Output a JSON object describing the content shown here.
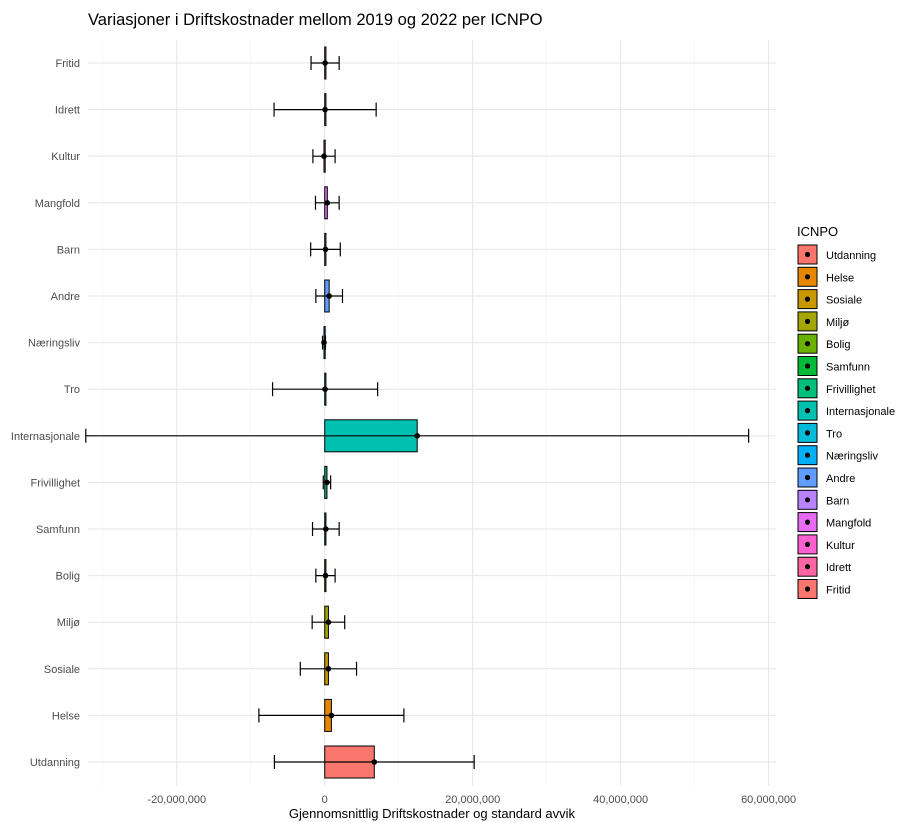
{
  "chart_data": {
    "type": "bar",
    "orientation": "horizontal",
    "title": "Variasjoner i Driftskostnader mellom 2019 og 2022 per ICNPO",
    "xlabel": "Gjennomsnittlig Driftskostnader og standard avvik",
    "ylabel": "",
    "xlim": [
      -32000000,
      61000000
    ],
    "x_ticks": [
      -20000000,
      0,
      20000000,
      40000000,
      60000000
    ],
    "x_tick_labels": [
      "-20,000,000",
      "0",
      "20,000,000",
      "40,000,000",
      "60,000,000"
    ],
    "grid": true,
    "legend": {
      "title": "ICNPO",
      "placement": "right",
      "entries": [
        "Utdanning",
        "Helse",
        "Sosiale",
        "Miljø",
        "Bolig",
        "Samfunn",
        "Frivillighet",
        "Internasjonale",
        "Tro",
        "Næringsliv",
        "Andre",
        "Barn",
        "Mangfold",
        "Kultur",
        "Idrett",
        "Fritid"
      ]
    },
    "categories": [
      "Utdanning",
      "Helse",
      "Sosiale",
      "Miljø",
      "Bolig",
      "Samfunn",
      "Frivillighet",
      "Internasjonale",
      "Tro",
      "Næringsliv",
      "Andre",
      "Barn",
      "Mangfold",
      "Kultur",
      "Idrett",
      "Fritid"
    ],
    "series": [
      {
        "values": [
          6700000,
          900000,
          500000,
          500000,
          100000,
          150000,
          300000,
          12500000,
          50000,
          -100000,
          600000,
          100000,
          350000,
          -100000,
          50000,
          50000
        ],
        "sd": [
          13500000,
          9800000,
          3800000,
          2200000,
          1300000,
          1800000,
          500000,
          44800000,
          7100000,
          200000,
          1800000,
          2000000,
          1600000,
          1500000,
          6900000,
          1900000
        ],
        "colors": [
          "#F8766D",
          "#E58700",
          "#C99800",
          "#A3A500",
          "#6BB100",
          "#00BA38",
          "#00BF7D",
          "#00C0AF",
          "#00BCD8",
          "#00B0F6",
          "#619CFF",
          "#B983FF",
          "#E76BF3",
          "#FD61D1",
          "#FF67A4",
          "#F8766D"
        ]
      }
    ]
  }
}
